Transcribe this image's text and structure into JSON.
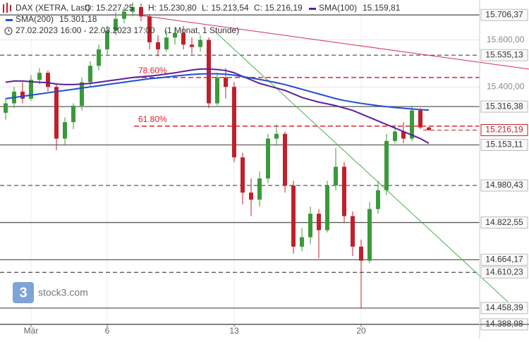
{
  "chart_data": {
    "type": "candlestick",
    "title": "DAX (XETRA, Last)",
    "ohlc_header": [
      "O: 15.227,25",
      "H: 15.230,80",
      "L: 15.213,54",
      "C: 15.216,19"
    ],
    "date_range": "27.02.2023 16:00 - 22.03.2023 17:00",
    "interval": "(1 Monat, 1 Stunde)",
    "categories": [
      null,
      null,
      null,
      "Mär",
      null,
      null,
      null,
      null,
      null,
      null,
      null,
      null,
      "6",
      null,
      null,
      null,
      null,
      null,
      null,
      null,
      null,
      null,
      null,
      null,
      null,
      null,
      null,
      "13",
      null,
      null,
      null,
      null,
      null,
      null,
      null,
      null,
      null,
      null,
      null,
      null,
      null,
      null,
      "20",
      null,
      null,
      null,
      null,
      null,
      null,
      null,
      null
    ],
    "open": [
      15290,
      15330,
      15380,
      15350,
      15430,
      15460,
      15400,
      15180,
      15250,
      15320,
      15420,
      15490,
      15560,
      15640,
      15690,
      15720,
      15740,
      15700,
      15590,
      15560,
      15610,
      15630,
      15580,
      15570,
      15600,
      15330,
      15440,
      15400,
      15100,
      14950,
      14920,
      15010,
      15180,
      15200,
      14980,
      14720,
      14760,
      14860,
      14790,
      14980,
      15060,
      14850,
      14720,
      14660,
      14880,
      14960,
      15170,
      15210,
      15180,
      15300,
      15227.25
    ],
    "high": [
      15350,
      15400,
      15420,
      15450,
      15480,
      15470,
      15410,
      15270,
      15330,
      15440,
      15510,
      15580,
      15660,
      15720,
      15740,
      15760,
      15755,
      15710,
      15620,
      15640,
      15650,
      15660,
      15610,
      15620,
      15610,
      15460,
      15480,
      15420,
      15120,
      15010,
      15040,
      15200,
      15240,
      15210,
      15000,
      14800,
      14890,
      14880,
      15000,
      15140,
      15080,
      14870,
      14750,
      14910,
      15000,
      15200,
      15240,
      15250,
      15320,
      15310,
      15230.8
    ],
    "low": [
      15260,
      15310,
      15330,
      15340,
      15410,
      15380,
      15130,
      15150,
      15220,
      15300,
      15400,
      15470,
      15540,
      15620,
      15670,
      15700,
      15680,
      15560,
      15530,
      15550,
      15580,
      15560,
      15540,
      15550,
      15310,
      15320,
      15350,
      15080,
      14900,
      14850,
      14890,
      14990,
      15150,
      14950,
      14690,
      14700,
      14730,
      14670,
      14780,
      14960,
      14820,
      14680,
      14458.39,
      14650,
      14860,
      14940,
      15160,
      15160,
      15170,
      15220,
      15213.54
    ],
    "close": [
      15330,
      15380,
      15350,
      15430,
      15460,
      15400,
      15180,
      15250,
      15320,
      15420,
      15490,
      15560,
      15640,
      15690,
      15720,
      15740,
      15700,
      15590,
      15560,
      15610,
      15630,
      15580,
      15570,
      15600,
      15330,
      15440,
      15400,
      15100,
      14950,
      14920,
      15010,
      15180,
      15200,
      14980,
      14720,
      14760,
      14860,
      14790,
      14980,
      15060,
      14850,
      14720,
      14660,
      14880,
      14960,
      15170,
      15210,
      15180,
      15300,
      15227.25,
      15216.19
    ],
    "up_color": "#3a9a3a",
    "down_color": "#c0202a",
    "last_price_label": "15.216,19",
    "overlays": [
      {
        "name": "SMA(100)",
        "value_label": "15.159,81",
        "color": "#5b1f9e",
        "values": [
          15420,
          15425,
          15425,
          15422,
          15420,
          15418,
          15412,
          15410,
          15410,
          15412,
          15415,
          15420,
          15425,
          15430,
          15435,
          15440,
          15443,
          15446,
          15450,
          15455,
          15460,
          15466,
          15472,
          15476,
          15476,
          15474,
          15470,
          15460,
          15445,
          15430,
          15415,
          15405,
          15395,
          15385,
          15370,
          15355,
          15345,
          15335,
          15328,
          15320,
          15310,
          15300,
          15285,
          15270,
          15255,
          15240,
          15225,
          15210,
          15195,
          15180,
          15159.81
        ]
      },
      {
        "name": "SMA(200)",
        "value_label": "15.301,18",
        "color": "#1f4fd0",
        "values": [
          15350,
          15355,
          15360,
          15365,
          15370,
          15375,
          15380,
          15385,
          15390,
          15395,
          15400,
          15405,
          15410,
          15415,
          15420,
          15425,
          15430,
          15435,
          15438,
          15442,
          15446,
          15450,
          15453,
          15455,
          15456,
          15456,
          15454,
          15450,
          15444,
          15438,
          15432,
          15425,
          15418,
          15410,
          15400,
          15390,
          15380,
          15370,
          15360,
          15350,
          15342,
          15336,
          15330,
          15325,
          15320,
          15316,
          15312,
          15309,
          15306,
          15303,
          15301.18
        ]
      }
    ],
    "ylim": [
      14388.98,
      15770
    ],
    "yticks": [
      {
        "value": 15600,
        "label": "15.600,00"
      },
      {
        "value": 15400,
        "label": "15.400,00"
      }
    ],
    "grid": true,
    "levels": [
      {
        "value": 15706.37,
        "label": "15.706,37",
        "style": "solid"
      },
      {
        "value": 15535.13,
        "label": "15.535,13",
        "style": "dashed"
      },
      {
        "value": 15316.38,
        "label": "15.316,38",
        "style": "solid"
      },
      {
        "value": 15153.11,
        "label": "15.153,11",
        "style": "solid"
      },
      {
        "value": 14980.43,
        "label": "14.980,43",
        "style": "dashed"
      },
      {
        "value": 14822.55,
        "label": "14.822,55",
        "style": "solid"
      },
      {
        "value": 14664.17,
        "label": "14.664,17",
        "style": "solid"
      },
      {
        "value": 14610.23,
        "label": "14.610,23",
        "style": "dashed"
      },
      {
        "value": 14458.39,
        "label": "14.458,39",
        "style": "solid"
      },
      {
        "value": 14388.98,
        "label": "14.388,98",
        "style": "solid"
      }
    ],
    "fib_levels": [
      {
        "value": 15440,
        "label": "78.60%"
      },
      {
        "value": 15233,
        "label": "61.80%"
      }
    ],
    "fib_color": "#e0202e",
    "logo": {
      "icon": "3",
      "text": "stock3.com"
    }
  }
}
